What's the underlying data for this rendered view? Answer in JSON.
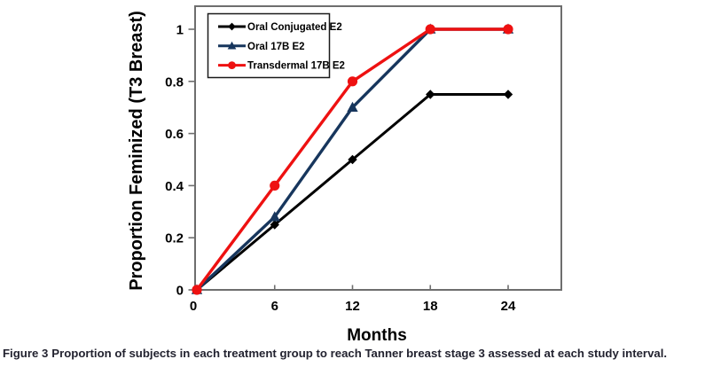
{
  "figure": {
    "caption_label": "Figure 3",
    "caption_text": "Proportion of subjects in each treatment group to reach Tanner breast stage 3 assessed at each study interval."
  },
  "chart_data": {
    "type": "line",
    "title": "",
    "xlabel": "Months",
    "ylabel": "Proportion Feminized (T3 Breast)",
    "x": [
      0,
      6,
      12,
      18,
      24
    ],
    "x_tick_labels": [
      "0",
      "6",
      "12",
      "18",
      "24"
    ],
    "y_ticks": [
      0,
      0.2,
      0.4,
      0.6,
      0.8,
      1
    ],
    "y_tick_labels": [
      "0",
      "0.2",
      "0.4",
      "0.6",
      "0.8",
      "1"
    ],
    "xlim": [
      0,
      28.1
    ],
    "ylim": [
      0,
      1.088
    ],
    "grid": false,
    "legend_position": "top-left-inside",
    "series": [
      {
        "name": "Oral Conjugated E2",
        "marker": "diamond",
        "color": "#000000",
        "values": [
          0,
          0.25,
          0.5,
          0.75,
          0.75
        ]
      },
      {
        "name": "Oral 17B E2",
        "marker": "triangle",
        "color": "#17365d",
        "values": [
          0,
          0.28,
          0.7,
          1,
          1
        ]
      },
      {
        "name": "Transdermal 17B E2",
        "marker": "circle",
        "color": "#ee1111",
        "values": [
          0,
          0.4,
          0.8,
          1,
          1
        ]
      }
    ]
  },
  "colors": {
    "axis_border": "#6e6e6e",
    "tick": "#6e6e6e",
    "legend_border": "#1a1a1a",
    "text": "#000000",
    "caption": "#232330"
  }
}
